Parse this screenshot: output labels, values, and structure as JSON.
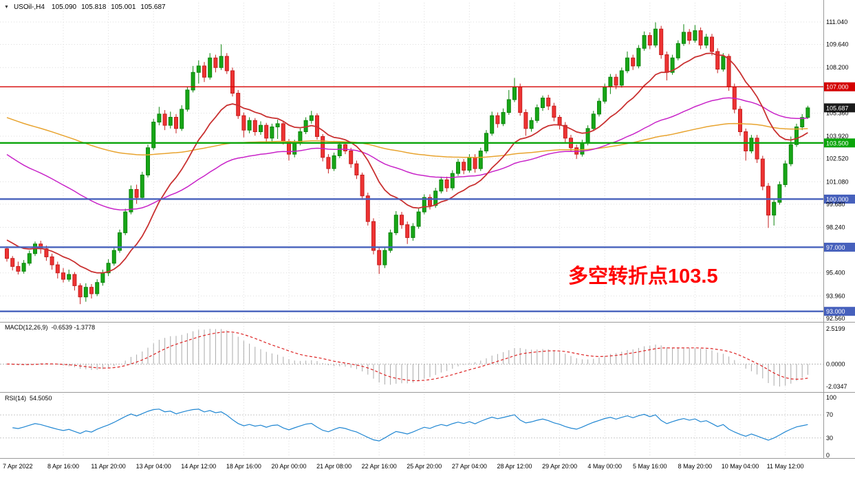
{
  "header": {
    "dropdown_icon": "▼",
    "symbol_period": "USOil-,H4",
    "open": "105.090",
    "high": "105.818",
    "low": "105.001",
    "close": "105.687"
  },
  "annotation": {
    "text": "多空转折点103.5",
    "color": "#ff0000"
  },
  "indicators": {
    "macd": {
      "label": "MACD(12,26,9)",
      "values": "-0.6539 -1.3778"
    },
    "rsi": {
      "label": "RSI(14)",
      "value": "54.5050"
    }
  },
  "chart_data": {
    "type": "candlestick",
    "symbol": "USOil-",
    "timeframe": "H4",
    "colors": {
      "up": "#17a617",
      "up_border": "#0d850d",
      "down": "#ee3333",
      "down_border": "#c51f1f",
      "ma_slow": "#e8a32e",
      "ma_mid": "#c822c8",
      "ma_fast": "#c93030",
      "macd_hist": "#a9a9a9",
      "macd_signal": "#dd2222",
      "rsi": "#1f86d2"
    },
    "price_axis_labels": [
      "111.040",
      "109.640",
      "108.200",
      "105.360",
      "103.920",
      "102.520",
      "101.080",
      "99.680",
      "98.240",
      "95.400",
      "93.960",
      "92.560"
    ],
    "price_badges": [
      {
        "value": 107.0,
        "text": "107.000",
        "color": "#d40000"
      },
      {
        "value": 105.687,
        "text": "105.687",
        "color": "#1b1b1b"
      },
      {
        "value": 103.5,
        "text": "103.500",
        "color": "#0aa50a"
      },
      {
        "value": 100.0,
        "text": "100.000",
        "color": "#4660bc"
      },
      {
        "value": 97.0,
        "text": "97.000",
        "color": "#4660bc"
      },
      {
        "value": 93.0,
        "text": "93.000",
        "color": "#4660bc"
      }
    ],
    "levels": [
      {
        "price": 107.0,
        "color": "#d40000",
        "width": 1.4
      },
      {
        "price": 103.5,
        "color": "#0aa50a",
        "width": 2.4
      },
      {
        "price": 100.0,
        "color": "#4660bc",
        "width": 2.4
      },
      {
        "price": 97.0,
        "color": "#4660bc",
        "width": 2.4
      },
      {
        "price": 93.0,
        "color": "#4660bc",
        "width": 2.4
      }
    ],
    "moving_averages": [
      {
        "key": "ma_slow",
        "period": 150,
        "seed": 105.2,
        "width": 1.5
      },
      {
        "key": "ma_mid",
        "period": 60,
        "seed": 103.0,
        "width": 1.5
      },
      {
        "key": "ma_fast",
        "period": 16,
        "seed": 97.6,
        "width": 1.8
      }
    ],
    "macd": {
      "fast": 12,
      "slow": 26,
      "signal": 9,
      "axis_labels": [
        "2.5199",
        "0.0000",
        "-2.0347"
      ]
    },
    "rsi": {
      "period": 14,
      "levels": [
        70,
        30
      ],
      "axis_labels": [
        "100",
        "70",
        "30",
        "0"
      ]
    },
    "time_labels": [
      "7 Apr 2022",
      "8 Apr 16:00",
      "11 Apr 20:00",
      "13 Apr 04:00",
      "14 Apr 12:00",
      "18 Apr 16:00",
      "20 Apr 00:00",
      "21 Apr 08:00",
      "22 Apr 16:00",
      "25 Apr 20:00",
      "27 Apr 04:00",
      "28 Apr 12:00",
      "29 Apr 20:00",
      "4 May 00:00",
      "5 May 16:00",
      "8 May 20:00",
      "10 May 04:00",
      "11 May 12:00"
    ],
    "candles_ohlc": [
      [
        96.9,
        97.05,
        96.1,
        96.3
      ],
      [
        96.3,
        96.45,
        95.55,
        95.8
      ],
      [
        95.8,
        96.1,
        95.3,
        95.5
      ],
      [
        95.5,
        96.2,
        95.35,
        96.0
      ],
      [
        96.0,
        96.8,
        95.85,
        96.6
      ],
      [
        96.6,
        97.35,
        96.45,
        97.2
      ],
      [
        97.2,
        97.4,
        96.6,
        96.9
      ],
      [
        96.9,
        97.1,
        96.15,
        96.4
      ],
      [
        96.4,
        96.6,
        95.6,
        95.9
      ],
      [
        95.9,
        96.1,
        95.05,
        95.4
      ],
      [
        95.4,
        95.7,
        94.8,
        95.0
      ],
      [
        95.0,
        95.6,
        94.85,
        95.3
      ],
      [
        95.3,
        95.45,
        94.3,
        94.6
      ],
      [
        94.6,
        94.75,
        93.45,
        93.9
      ],
      [
        93.9,
        94.75,
        93.6,
        94.5
      ],
      [
        94.5,
        94.7,
        93.8,
        94.1
      ],
      [
        94.1,
        95.0,
        93.95,
        94.8
      ],
      [
        94.8,
        95.6,
        94.6,
        95.4
      ],
      [
        95.4,
        96.25,
        95.2,
        96.0
      ],
      [
        96.0,
        97.0,
        95.85,
        96.8
      ],
      [
        96.8,
        98.1,
        96.65,
        97.9
      ],
      [
        97.9,
        99.4,
        97.75,
        99.2
      ],
      [
        99.2,
        100.85,
        99.05,
        100.6
      ],
      [
        100.6,
        100.9,
        99.7,
        100.1
      ],
      [
        100.1,
        101.7,
        99.95,
        101.5
      ],
      [
        101.5,
        103.4,
        101.35,
        103.2
      ],
      [
        103.2,
        105.0,
        103.05,
        104.8
      ],
      [
        104.8,
        105.75,
        104.6,
        105.3
      ],
      [
        105.3,
        105.55,
        104.3,
        104.6
      ],
      [
        104.6,
        105.45,
        104.4,
        105.1
      ],
      [
        105.1,
        105.3,
        104.1,
        104.4
      ],
      [
        104.4,
        105.85,
        104.25,
        105.6
      ],
      [
        105.6,
        107.0,
        105.45,
        106.8
      ],
      [
        106.8,
        108.3,
        106.65,
        107.9
      ],
      [
        107.9,
        108.65,
        107.2,
        108.3
      ],
      [
        108.3,
        108.55,
        107.3,
        107.6
      ],
      [
        107.6,
        109.1,
        107.45,
        108.8
      ],
      [
        108.8,
        109.0,
        107.9,
        108.2
      ],
      [
        108.2,
        109.65,
        108.05,
        108.9
      ],
      [
        108.9,
        109.1,
        107.8,
        108.0
      ],
      [
        108.0,
        108.2,
        106.4,
        106.6
      ],
      [
        106.6,
        106.8,
        105.0,
        105.2
      ],
      [
        105.2,
        105.4,
        103.85,
        104.3
      ],
      [
        104.3,
        105.1,
        104.1,
        104.9
      ],
      [
        104.9,
        105.05,
        103.95,
        104.2
      ],
      [
        104.2,
        104.85,
        104.0,
        104.6
      ],
      [
        104.6,
        104.75,
        103.55,
        103.8
      ],
      [
        103.8,
        104.7,
        103.6,
        104.5
      ],
      [
        104.5,
        104.95,
        103.75,
        104.7
      ],
      [
        104.7,
        104.85,
        103.4,
        103.6
      ],
      [
        103.6,
        103.75,
        102.4,
        102.8
      ],
      [
        102.8,
        103.7,
        102.6,
        103.5
      ],
      [
        103.5,
        104.4,
        103.35,
        104.2
      ],
      [
        104.2,
        105.1,
        104.05,
        104.9
      ],
      [
        104.9,
        105.5,
        104.7,
        105.2
      ],
      [
        105.2,
        105.35,
        103.7,
        103.9
      ],
      [
        103.9,
        104.05,
        102.35,
        102.6
      ],
      [
        102.6,
        102.8,
        101.6,
        101.9
      ],
      [
        101.9,
        102.9,
        101.75,
        102.7
      ],
      [
        102.7,
        103.6,
        102.55,
        103.4
      ],
      [
        103.4,
        103.6,
        102.8,
        103.0
      ],
      [
        103.0,
        103.2,
        101.95,
        102.2
      ],
      [
        102.2,
        102.4,
        101.25,
        101.5
      ],
      [
        101.5,
        101.65,
        99.95,
        100.2
      ],
      [
        100.2,
        100.4,
        98.35,
        98.6
      ],
      [
        98.6,
        98.8,
        96.55,
        96.8
      ],
      [
        96.8,
        97.0,
        95.33,
        95.9
      ],
      [
        95.9,
        97.0,
        95.7,
        96.8
      ],
      [
        96.8,
        98.1,
        96.65,
        97.9
      ],
      [
        97.9,
        99.25,
        97.75,
        99.0
      ],
      [
        99.0,
        99.2,
        98.15,
        98.4
      ],
      [
        98.4,
        98.6,
        97.2,
        97.6
      ],
      [
        97.6,
        98.5,
        97.4,
        98.3
      ],
      [
        98.3,
        99.4,
        98.15,
        99.2
      ],
      [
        99.2,
        100.3,
        99.05,
        100.1
      ],
      [
        100.1,
        100.3,
        99.35,
        99.6
      ],
      [
        99.6,
        100.7,
        99.45,
        100.5
      ],
      [
        100.5,
        101.4,
        100.35,
        101.2
      ],
      [
        101.2,
        101.4,
        100.45,
        100.7
      ],
      [
        100.7,
        101.8,
        100.55,
        101.6
      ],
      [
        101.6,
        102.5,
        101.45,
        102.3
      ],
      [
        102.3,
        102.5,
        101.55,
        101.8
      ],
      [
        101.8,
        102.8,
        101.65,
        102.6
      ],
      [
        102.6,
        102.8,
        101.65,
        101.9
      ],
      [
        101.9,
        103.2,
        101.75,
        103.0
      ],
      [
        103.0,
        104.3,
        102.85,
        104.1
      ],
      [
        104.1,
        105.45,
        103.95,
        105.2
      ],
      [
        105.2,
        105.4,
        104.45,
        104.7
      ],
      [
        104.7,
        105.65,
        104.55,
        105.4
      ],
      [
        105.4,
        106.8,
        105.25,
        106.2
      ],
      [
        106.2,
        107.55,
        106.05,
        107.0
      ],
      [
        107.0,
        107.2,
        105.2,
        105.4
      ],
      [
        105.4,
        105.6,
        103.95,
        104.4
      ],
      [
        104.4,
        105.1,
        104.2,
        104.9
      ],
      [
        104.9,
        105.9,
        104.75,
        105.7
      ],
      [
        105.7,
        106.45,
        105.5,
        106.3
      ],
      [
        106.3,
        106.5,
        105.55,
        105.8
      ],
      [
        105.8,
        106.0,
        104.85,
        105.1
      ],
      [
        105.1,
        105.25,
        104.35,
        104.6
      ],
      [
        104.6,
        104.8,
        103.55,
        103.8
      ],
      [
        103.8,
        104.0,
        102.95,
        103.2
      ],
      [
        103.2,
        103.4,
        102.5,
        102.8
      ],
      [
        102.8,
        103.7,
        102.65,
        103.5
      ],
      [
        103.5,
        104.6,
        103.35,
        104.4
      ],
      [
        104.4,
        105.5,
        104.25,
        105.3
      ],
      [
        105.3,
        106.3,
        105.15,
        106.1
      ],
      [
        106.1,
        107.2,
        105.95,
        107.0
      ],
      [
        107.0,
        107.8,
        106.55,
        107.6
      ],
      [
        107.6,
        107.8,
        106.85,
        107.1
      ],
      [
        107.1,
        108.2,
        106.95,
        108.0
      ],
      [
        108.0,
        109.2,
        107.85,
        108.8
      ],
      [
        108.8,
        109.0,
        108.05,
        108.3
      ],
      [
        108.3,
        109.6,
        108.15,
        109.4
      ],
      [
        109.4,
        110.45,
        109.25,
        110.2
      ],
      [
        110.2,
        110.4,
        109.35,
        109.6
      ],
      [
        109.6,
        111.02,
        109.45,
        110.6
      ],
      [
        110.6,
        110.8,
        108.75,
        109.0
      ],
      [
        109.0,
        109.2,
        107.4,
        107.9
      ],
      [
        107.9,
        109.0,
        107.75,
        108.8
      ],
      [
        108.8,
        109.9,
        108.65,
        109.7
      ],
      [
        109.7,
        110.9,
        109.55,
        110.4
      ],
      [
        110.4,
        110.6,
        109.65,
        109.9
      ],
      [
        109.9,
        110.85,
        109.75,
        110.5
      ],
      [
        110.5,
        110.7,
        109.35,
        109.6
      ],
      [
        109.6,
        110.3,
        109.4,
        110.1
      ],
      [
        110.1,
        110.3,
        108.95,
        109.2
      ],
      [
        109.2,
        109.4,
        107.85,
        108.1
      ],
      [
        108.1,
        109.1,
        107.95,
        108.9
      ],
      [
        108.9,
        109.05,
        106.75,
        107.0
      ],
      [
        107.0,
        107.2,
        105.35,
        105.6
      ],
      [
        105.6,
        105.8,
        103.95,
        104.2
      ],
      [
        104.2,
        104.4,
        102.4,
        103.0
      ],
      [
        103.0,
        104.0,
        102.85,
        103.8
      ],
      [
        103.8,
        104.0,
        102.25,
        102.5
      ],
      [
        102.5,
        102.7,
        100.55,
        100.8
      ],
      [
        100.8,
        101.0,
        98.2,
        99.0
      ],
      [
        99.0,
        100.0,
        98.35,
        99.8
      ],
      [
        99.8,
        101.1,
        99.65,
        100.9
      ],
      [
        100.9,
        102.4,
        100.75,
        102.2
      ],
      [
        102.2,
        103.9,
        102.05,
        103.4
      ],
      [
        103.4,
        104.7,
        103.25,
        104.5
      ],
      [
        104.5,
        105.3,
        104.3,
        105.09
      ],
      [
        105.09,
        105.818,
        105.001,
        105.687
      ]
    ]
  }
}
